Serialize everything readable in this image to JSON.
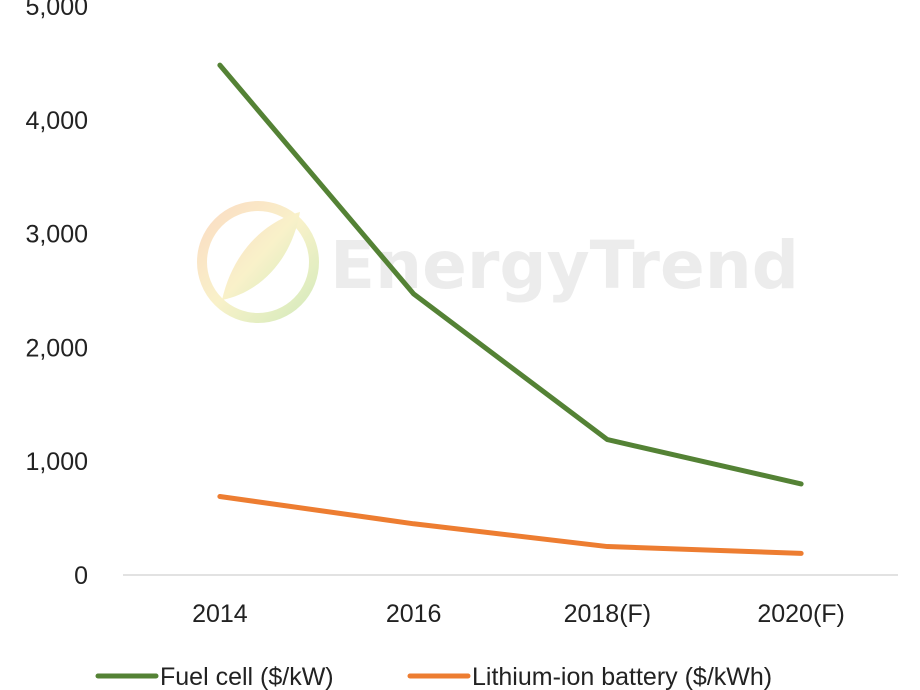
{
  "chart_data": {
    "type": "line",
    "categories": [
      "2014",
      "2016",
      "2018(F)",
      "2020(F)"
    ],
    "series": [
      {
        "name": "Fuel cell ($/kW)",
        "values": [
          4480,
          2470,
          1190,
          800
        ],
        "color": "#548235"
      },
      {
        "name": "Lithium-ion battery ($/kWh)",
        "values": [
          690,
          450,
          250,
          190
        ],
        "color": "#ed7d31"
      }
    ],
    "y_ticks": [
      "0",
      "1,000",
      "2,000",
      "3,000",
      "4,000",
      "5,000"
    ],
    "ylim": [
      0,
      5000
    ],
    "grid": false,
    "legend_position": "bottom"
  },
  "watermark": {
    "text": "EnergyTrend",
    "icon": "leaf-logo-icon"
  }
}
